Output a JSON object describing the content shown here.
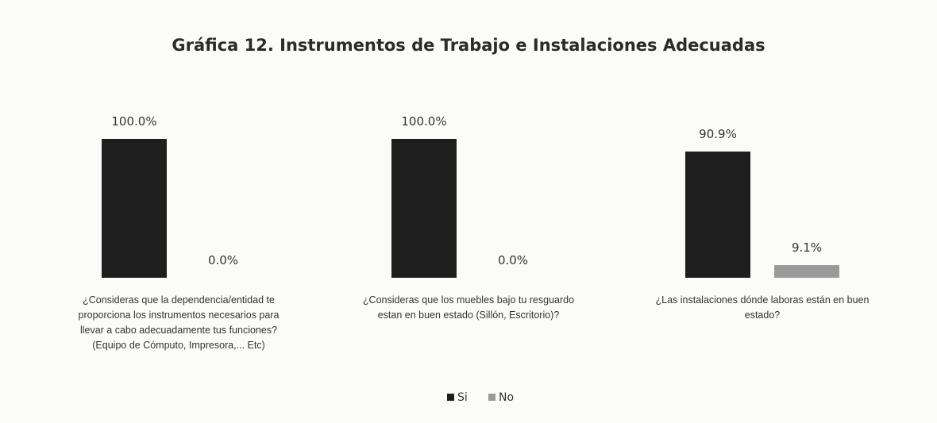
{
  "chart_data": {
    "type": "bar",
    "title": "Gráfica 12. Instrumentos de Trabajo e Instalaciones Adecuadas",
    "categories": [
      [
        "¿Consideras que la dependencia/entidad te",
        "proporciona los instrumentos necesarios para",
        "llevar a cabo adecuadamente tus funciones?",
        "(Equipo de Cómputo, Impresora,... Etc)"
      ],
      [
        "¿Consideras que los muebles bajo tu resguardo",
        "estan en buen estado (Sillón, Escritorio)?"
      ],
      [
        "¿Las instalaciones dónde laboras están en buen",
        "estado?"
      ]
    ],
    "series": [
      {
        "name": "Si",
        "values": [
          100.0,
          100.0,
          90.9
        ],
        "labels": [
          "100.0%",
          "100.0%",
          "90.9%"
        ],
        "color": "#1e1e1e"
      },
      {
        "name": "No",
        "values": [
          0.0,
          0.0,
          9.1
        ],
        "labels": [
          "0.0%",
          "0.0%",
          "9.1%"
        ],
        "color": "#9a9a9a"
      }
    ],
    "ylim": [
      0,
      100
    ],
    "legend": "bottom",
    "grid": false
  }
}
